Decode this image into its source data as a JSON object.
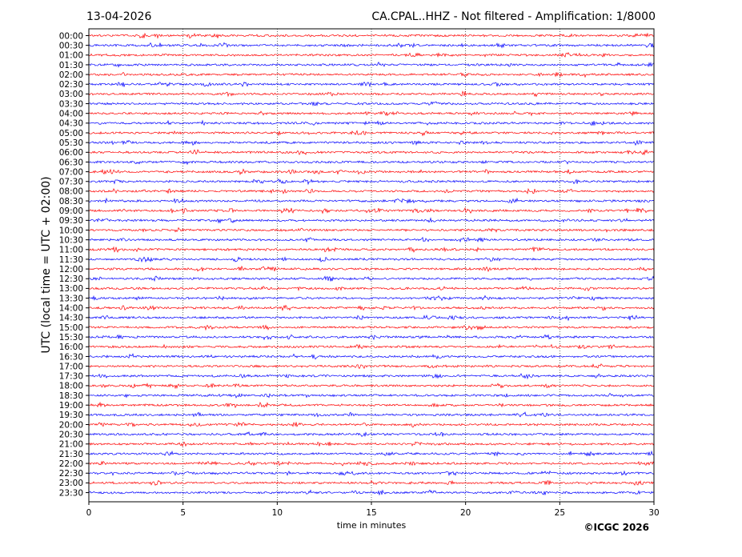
{
  "header": {
    "date": "13-04-2026",
    "station_title": "CA.CPAL..HHZ - Not filtered - Amplification: 1/8000"
  },
  "footer": {
    "copyright": "©ICGC 2026"
  },
  "chart_data": {
    "type": "line",
    "title": "CA.CPAL..HHZ - Not filtered - Amplification: 1/8000",
    "date": "13-04-2026",
    "xlabel": "time in minutes",
    "ylabel": "UTC (local time = UTC + 02:00)",
    "xlim": [
      0,
      30
    ],
    "x_ticks": [
      0,
      5,
      10,
      15,
      20,
      25,
      30
    ],
    "grid": "vertical dotted lines at x ticks",
    "rows": [
      "00:00",
      "00:30",
      "01:00",
      "01:30",
      "02:00",
      "02:30",
      "03:00",
      "03:30",
      "04:00",
      "04:30",
      "05:00",
      "05:30",
      "06:00",
      "06:30",
      "07:00",
      "07:30",
      "08:00",
      "08:30",
      "09:00",
      "09:30",
      "10:00",
      "10:30",
      "11:00",
      "11:30",
      "12:00",
      "12:30",
      "13:00",
      "13:30",
      "14:00",
      "14:30",
      "15:00",
      "15:30",
      "16:00",
      "16:30",
      "17:00",
      "17:30",
      "18:00",
      "18:30",
      "19:00",
      "19:30",
      "20:00",
      "20:30",
      "21:00",
      "21:30",
      "22:00",
      "22:30",
      "23:00",
      "23:30"
    ],
    "trace_colors": [
      "#ff0000",
      "#0000ff"
    ],
    "trace_description": "alternating red/blue seismic noise traces, one per 30-minute row"
  }
}
